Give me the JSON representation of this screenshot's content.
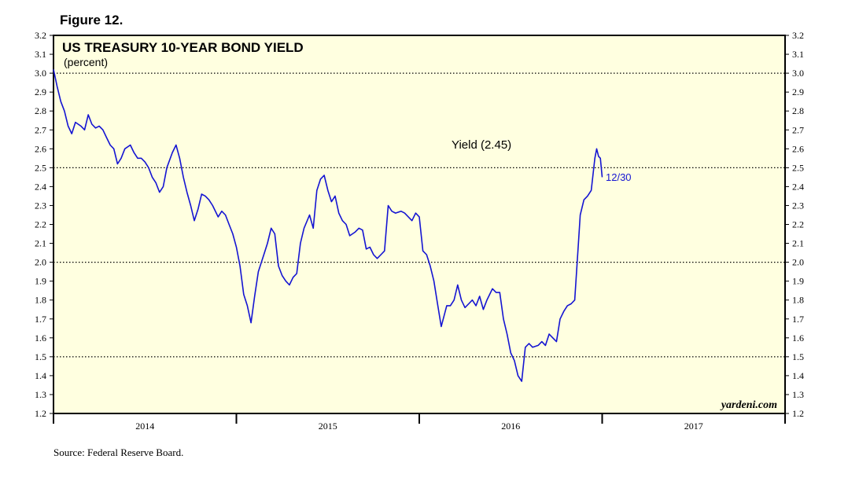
{
  "figure_label": "Figure 12.",
  "source": "Source: Federal Reserve Board.",
  "brand": "yardeni.com",
  "colors": {
    "plot_background": "#ffffe0",
    "series_line": "#1414d2",
    "frame": "#000000"
  },
  "chart_data": {
    "type": "line",
    "title": "US TREASURY 10-YEAR BOND YIELD",
    "subtitle": "(percent)",
    "xlabel": "",
    "ylabel": "",
    "ylim": [
      1.2,
      3.2
    ],
    "y_ticks": [
      "1.2",
      "1.3",
      "1.4",
      "1.5",
      "1.6",
      "1.7",
      "1.8",
      "1.9",
      "2.0",
      "2.1",
      "2.2",
      "2.3",
      "2.4",
      "2.5",
      "2.6",
      "2.7",
      "2.8",
      "2.9",
      "3.0",
      "3.1",
      "3.2"
    ],
    "dotted_gridlines": [
      1.5,
      2.0,
      2.5,
      3.0
    ],
    "x_range": [
      2014.0,
      2018.0
    ],
    "x_year_labels": [
      "2014",
      "2015",
      "2016",
      "2017"
    ],
    "series": [
      {
        "annotation": "Yield (2.45)",
        "end_label": "12/30",
        "points": [
          [
            2014.0,
            3.02
          ],
          [
            2014.02,
            2.93
          ],
          [
            2014.04,
            2.85
          ],
          [
            2014.06,
            2.8
          ],
          [
            2014.08,
            2.72
          ],
          [
            2014.1,
            2.68
          ],
          [
            2014.12,
            2.74
          ],
          [
            2014.15,
            2.72
          ],
          [
            2014.17,
            2.7
          ],
          [
            2014.19,
            2.78
          ],
          [
            2014.21,
            2.73
          ],
          [
            2014.23,
            2.71
          ],
          [
            2014.25,
            2.72
          ],
          [
            2014.27,
            2.7
          ],
          [
            2014.29,
            2.66
          ],
          [
            2014.31,
            2.62
          ],
          [
            2014.33,
            2.6
          ],
          [
            2014.35,
            2.52
          ],
          [
            2014.37,
            2.55
          ],
          [
            2014.39,
            2.6
          ],
          [
            2014.42,
            2.62
          ],
          [
            2014.44,
            2.58
          ],
          [
            2014.46,
            2.55
          ],
          [
            2014.48,
            2.55
          ],
          [
            2014.5,
            2.53
          ],
          [
            2014.52,
            2.5
          ],
          [
            2014.54,
            2.45
          ],
          [
            2014.56,
            2.42
          ],
          [
            2014.58,
            2.37
          ],
          [
            2014.6,
            2.4
          ],
          [
            2014.62,
            2.5
          ],
          [
            2014.65,
            2.58
          ],
          [
            2014.67,
            2.62
          ],
          [
            2014.69,
            2.55
          ],
          [
            2014.71,
            2.45
          ],
          [
            2014.73,
            2.37
          ],
          [
            2014.75,
            2.3
          ],
          [
            2014.77,
            2.22
          ],
          [
            2014.79,
            2.28
          ],
          [
            2014.81,
            2.36
          ],
          [
            2014.83,
            2.35
          ],
          [
            2014.85,
            2.33
          ],
          [
            2014.87,
            2.3
          ],
          [
            2014.9,
            2.24
          ],
          [
            2014.92,
            2.27
          ],
          [
            2014.94,
            2.25
          ],
          [
            2014.96,
            2.2
          ],
          [
            2014.98,
            2.15
          ],
          [
            2015.0,
            2.08
          ],
          [
            2015.02,
            1.98
          ],
          [
            2015.04,
            1.83
          ],
          [
            2015.06,
            1.77
          ],
          [
            2015.08,
            1.68
          ],
          [
            2015.1,
            1.82
          ],
          [
            2015.12,
            1.95
          ],
          [
            2015.15,
            2.04
          ],
          [
            2015.17,
            2.1
          ],
          [
            2015.19,
            2.18
          ],
          [
            2015.21,
            2.15
          ],
          [
            2015.23,
            1.98
          ],
          [
            2015.25,
            1.93
          ],
          [
            2015.27,
            1.9
          ],
          [
            2015.29,
            1.88
          ],
          [
            2015.31,
            1.92
          ],
          [
            2015.33,
            1.94
          ],
          [
            2015.35,
            2.1
          ],
          [
            2015.37,
            2.18
          ],
          [
            2015.4,
            2.25
          ],
          [
            2015.42,
            2.18
          ],
          [
            2015.44,
            2.38
          ],
          [
            2015.46,
            2.44
          ],
          [
            2015.48,
            2.46
          ],
          [
            2015.5,
            2.38
          ],
          [
            2015.52,
            2.32
          ],
          [
            2015.54,
            2.35
          ],
          [
            2015.56,
            2.26
          ],
          [
            2015.58,
            2.22
          ],
          [
            2015.6,
            2.2
          ],
          [
            2015.62,
            2.14
          ],
          [
            2015.65,
            2.16
          ],
          [
            2015.67,
            2.18
          ],
          [
            2015.69,
            2.17
          ],
          [
            2015.71,
            2.07
          ],
          [
            2015.73,
            2.08
          ],
          [
            2015.75,
            2.04
          ],
          [
            2015.77,
            2.02
          ],
          [
            2015.79,
            2.04
          ],
          [
            2015.81,
            2.06
          ],
          [
            2015.83,
            2.3
          ],
          [
            2015.85,
            2.27
          ],
          [
            2015.87,
            2.26
          ],
          [
            2015.9,
            2.27
          ],
          [
            2015.92,
            2.26
          ],
          [
            2015.94,
            2.24
          ],
          [
            2015.96,
            2.22
          ],
          [
            2015.98,
            2.26
          ],
          [
            2016.0,
            2.24
          ],
          [
            2016.02,
            2.06
          ],
          [
            2016.04,
            2.04
          ],
          [
            2016.06,
            1.98
          ],
          [
            2016.08,
            1.9
          ],
          [
            2016.1,
            1.78
          ],
          [
            2016.12,
            1.66
          ],
          [
            2016.15,
            1.77
          ],
          [
            2016.17,
            1.77
          ],
          [
            2016.19,
            1.8
          ],
          [
            2016.21,
            1.88
          ],
          [
            2016.23,
            1.8
          ],
          [
            2016.25,
            1.76
          ],
          [
            2016.27,
            1.78
          ],
          [
            2016.29,
            1.8
          ],
          [
            2016.31,
            1.77
          ],
          [
            2016.33,
            1.82
          ],
          [
            2016.35,
            1.75
          ],
          [
            2016.37,
            1.8
          ],
          [
            2016.4,
            1.86
          ],
          [
            2016.42,
            1.84
          ],
          [
            2016.44,
            1.84
          ],
          [
            2016.46,
            1.7
          ],
          [
            2016.48,
            1.62
          ],
          [
            2016.5,
            1.52
          ],
          [
            2016.52,
            1.48
          ],
          [
            2016.54,
            1.4
          ],
          [
            2016.56,
            1.37
          ],
          [
            2016.58,
            1.55
          ],
          [
            2016.6,
            1.57
          ],
          [
            2016.62,
            1.55
          ],
          [
            2016.65,
            1.56
          ],
          [
            2016.67,
            1.58
          ],
          [
            2016.69,
            1.56
          ],
          [
            2016.71,
            1.62
          ],
          [
            2016.73,
            1.6
          ],
          [
            2016.75,
            1.58
          ],
          [
            2016.77,
            1.7
          ],
          [
            2016.79,
            1.74
          ],
          [
            2016.81,
            1.77
          ],
          [
            2016.83,
            1.78
          ],
          [
            2016.85,
            1.8
          ],
          [
            2016.87,
            2.1
          ],
          [
            2016.88,
            2.25
          ],
          [
            2016.9,
            2.33
          ],
          [
            2016.92,
            2.35
          ],
          [
            2016.94,
            2.38
          ],
          [
            2016.96,
            2.55
          ],
          [
            2016.97,
            2.6
          ],
          [
            2016.98,
            2.56
          ],
          [
            2016.99,
            2.55
          ],
          [
            2017.0,
            2.45
          ]
        ]
      }
    ]
  }
}
